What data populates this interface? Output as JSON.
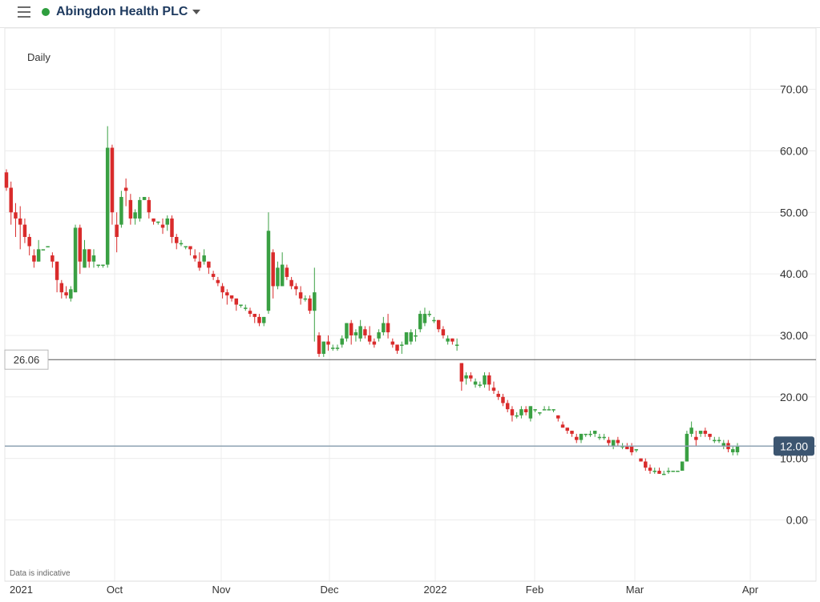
{
  "header": {
    "title": "Abingdon Health PLC",
    "status_color": "#2e9e3e"
  },
  "chart": {
    "period_label": "Daily",
    "note": "Data is indicative",
    "up_color": "#3aa043",
    "down_color": "#d92b2b"
  },
  "chart_data": {
    "type": "candlestick",
    "xlabels": [
      "2021",
      "Oct",
      "Nov",
      "Dec",
      "2022",
      "Feb",
      "Mar",
      "Apr"
    ],
    "yticks": [
      "70.00",
      "60.00",
      "50.00",
      "40.00",
      "30.00",
      "20.00",
      "10.00",
      "0.00"
    ],
    "ylim": [
      0,
      70
    ],
    "reference_line": {
      "label": "26.06",
      "value": 26.06
    },
    "last_price": {
      "label": "12.00",
      "value": 12.0
    },
    "candles": [
      [
        56.5,
        57,
        53.5,
        54
      ],
      [
        54,
        55,
        48,
        50
      ],
      [
        50,
        51.5,
        46,
        49
      ],
      [
        49,
        51,
        44,
        48
      ],
      [
        48,
        49,
        45,
        46
      ],
      [
        46,
        46.5,
        43,
        44.5
      ],
      [
        43,
        44,
        41,
        42
      ],
      [
        42,
        45.5,
        42,
        44
      ],
      [
        44,
        44,
        44,
        44
      ],
      [
        44.5,
        44.5,
        44.5,
        44.5
      ],
      [
        43,
        43.5,
        41,
        42
      ],
      [
        42,
        42,
        37,
        39
      ],
      [
        38.5,
        39,
        36,
        37
      ],
      [
        37,
        38,
        36,
        36.5
      ],
      [
        36,
        38,
        35.5,
        37.5
      ],
      [
        37,
        48,
        37,
        47.5
      ],
      [
        47.5,
        48,
        40,
        42
      ],
      [
        41,
        45.5,
        41,
        44
      ],
      [
        44,
        44,
        41,
        42
      ],
      [
        42,
        44,
        41,
        43
      ],
      [
        41.5,
        41.5,
        41,
        41.5
      ],
      [
        41.5,
        41.5,
        41,
        41.5
      ],
      [
        41.5,
        64,
        41,
        60.5
      ],
      [
        60.5,
        61,
        48,
        50
      ],
      [
        48,
        50,
        43.5,
        46
      ],
      [
        48,
        53.5,
        47.5,
        52.5
      ],
      [
        54,
        55.5,
        51,
        53.5
      ],
      [
        52,
        53,
        48,
        49
      ],
      [
        49,
        50.5,
        48,
        50
      ],
      [
        49,
        52.5,
        48.5,
        52
      ],
      [
        52,
        52.5,
        52,
        52.5
      ],
      [
        52,
        52.5,
        49,
        50
      ],
      [
        49,
        49,
        48,
        48.5
      ],
      [
        48.5,
        48.5,
        48,
        48.5
      ],
      [
        48,
        49,
        46.5,
        47.5
      ],
      [
        48,
        49.5,
        47,
        49
      ],
      [
        49,
        49.5,
        45,
        46
      ],
      [
        46,
        46.5,
        44,
        45
      ],
      [
        45,
        45.5,
        44.5,
        45
      ],
      [
        44.5,
        44.5,
        44,
        44.5
      ],
      [
        44.5,
        44.5,
        43,
        44
      ],
      [
        43,
        44,
        42,
        42.5
      ],
      [
        42,
        43.5,
        40.5,
        41
      ],
      [
        42,
        44,
        41.5,
        43
      ],
      [
        42,
        42,
        40,
        41
      ],
      [
        40,
        40.5,
        39,
        39.5
      ],
      [
        39,
        39.5,
        38,
        38.5
      ],
      [
        38,
        38.5,
        36,
        37
      ],
      [
        37,
        37.5,
        35,
        36.5
      ],
      [
        36.5,
        36.5,
        35.5,
        36
      ],
      [
        36,
        36,
        34,
        35
      ],
      [
        35,
        35,
        34.5,
        35
      ],
      [
        34.5,
        35,
        34,
        34.5
      ],
      [
        34,
        34.5,
        33,
        33.5
      ],
      [
        33.5,
        33.5,
        32,
        33
      ],
      [
        33,
        33.5,
        31.5,
        32
      ],
      [
        32,
        33,
        31.5,
        33
      ],
      [
        34,
        50,
        33.5,
        47
      ],
      [
        43.5,
        44,
        36,
        38
      ],
      [
        38,
        42,
        37.5,
        41
      ],
      [
        38,
        43.5,
        38,
        41.5
      ],
      [
        41,
        41.5,
        39,
        39.5
      ],
      [
        39,
        39.5,
        37.5,
        38
      ],
      [
        38,
        38.5,
        36.5,
        37.5
      ],
      [
        37,
        38,
        35,
        36
      ],
      [
        36,
        36.5,
        35.5,
        36
      ],
      [
        36,
        36.5,
        33.5,
        34
      ],
      [
        34,
        41,
        29,
        37
      ],
      [
        30,
        30.5,
        26.5,
        27
      ],
      [
        27,
        29,
        26.5,
        29
      ],
      [
        29,
        30,
        27.5,
        28.5
      ],
      [
        28,
        28.5,
        27.5,
        28
      ],
      [
        28,
        28.5,
        27.5,
        28
      ],
      [
        28.5,
        30,
        28,
        29.5
      ],
      [
        29.5,
        32,
        29,
        32
      ],
      [
        32,
        32.5,
        28.5,
        30
      ],
      [
        30,
        31,
        29,
        30.5
      ],
      [
        29.5,
        32.5,
        29,
        31.5
      ],
      [
        31,
        31.5,
        29.5,
        30
      ],
      [
        30,
        31.5,
        28.5,
        29
      ],
      [
        29,
        29.5,
        28,
        28.5
      ],
      [
        29.5,
        31,
        29,
        30.5
      ],
      [
        30.5,
        33,
        30,
        32
      ],
      [
        32,
        33.5,
        29.5,
        30.5
      ],
      [
        29,
        29.5,
        28,
        28.5
      ],
      [
        28.5,
        28.5,
        27,
        27.5
      ],
      [
        28.5,
        29,
        27,
        28.5
      ],
      [
        28.5,
        30.5,
        28.5,
        30.5
      ],
      [
        29,
        31,
        28.5,
        30.5
      ],
      [
        30,
        31,
        29,
        30
      ],
      [
        31,
        34,
        30.5,
        33.5
      ],
      [
        32,
        34.5,
        31.5,
        33.5
      ],
      [
        33.5,
        34,
        33,
        33.5
      ],
      [
        32.5,
        33,
        32,
        32.5
      ],
      [
        32.5,
        32.5,
        30.5,
        31
      ],
      [
        31,
        31.5,
        29.5,
        30
      ],
      [
        29,
        30,
        28.5,
        29.5
      ],
      [
        29.5,
        29.5,
        28.5,
        29
      ],
      [
        28.5,
        29.5,
        27.5,
        28.5
      ],
      [
        25.5,
        25.5,
        21,
        22.5
      ],
      [
        23,
        24,
        22,
        23.5
      ],
      [
        23.5,
        24,
        22.5,
        23
      ],
      [
        22,
        23,
        21.5,
        22.5
      ],
      [
        22,
        22.5,
        21.5,
        22
      ],
      [
        22,
        24,
        21.5,
        23.5
      ],
      [
        23.5,
        24,
        21,
        22
      ],
      [
        21.5,
        22.5,
        20.5,
        21
      ],
      [
        20.5,
        21,
        19.5,
        20
      ],
      [
        20,
        20.5,
        18.5,
        19
      ],
      [
        19,
        19.5,
        17.5,
        18
      ],
      [
        18,
        18.5,
        16,
        17
      ],
      [
        17,
        17.5,
        16.5,
        17
      ],
      [
        17,
        18.5,
        16.5,
        18
      ],
      [
        18,
        18.5,
        17,
        17.5
      ],
      [
        16.5,
        18.5,
        16,
        18.5
      ],
      [
        18,
        18,
        17.5,
        18
      ],
      [
        17.5,
        17.5,
        17,
        17.5
      ],
      [
        18,
        18.5,
        18,
        18
      ],
      [
        18,
        18.5,
        18,
        18
      ],
      [
        18,
        18,
        17.5,
        18
      ],
      [
        17,
        17,
        16,
        16.5
      ],
      [
        15.5,
        16,
        15,
        15
      ],
      [
        15,
        15,
        14,
        14.5
      ],
      [
        14.5,
        14.5,
        13.5,
        14
      ],
      [
        13.5,
        14,
        12.5,
        13
      ],
      [
        13,
        14,
        12.5,
        14
      ],
      [
        14,
        14,
        13.5,
        14
      ],
      [
        14,
        14.5,
        13.5,
        14
      ],
      [
        14,
        14.5,
        13.5,
        14.5
      ],
      [
        13.5,
        14,
        13,
        13.5
      ],
      [
        13.5,
        14,
        13,
        13.5
      ],
      [
        13,
        13.5,
        12,
        12.5
      ],
      [
        12,
        13,
        11.5,
        13
      ],
      [
        13,
        13.5,
        12,
        12.5
      ],
      [
        12,
        12.5,
        11.5,
        12
      ],
      [
        12,
        12.5,
        11.5,
        11.5
      ],
      [
        12,
        12.5,
        10.5,
        11
      ],
      [
        11.5,
        11.5,
        11,
        11.5
      ],
      [
        10,
        10,
        9.5,
        9.5
      ],
      [
        9.5,
        10,
        8,
        8.5
      ],
      [
        8.5,
        9,
        7.5,
        8
      ],
      [
        8,
        8.5,
        7.5,
        8
      ],
      [
        8,
        8.5,
        7.5,
        7.5
      ],
      [
        7.5,
        8,
        7.5,
        7.5
      ],
      [
        8,
        8.5,
        7.5,
        8
      ],
      [
        8,
        8,
        8,
        8
      ],
      [
        8,
        8,
        8,
        8
      ],
      [
        8,
        9.5,
        8,
        9.5
      ],
      [
        9.5,
        14.5,
        9.5,
        14
      ],
      [
        14,
        16,
        13.5,
        15
      ],
      [
        13.5,
        14.5,
        12,
        13
      ],
      [
        14,
        14.5,
        13.5,
        14.5
      ],
      [
        14.5,
        15,
        13.5,
        14
      ],
      [
        14,
        14,
        13,
        13.5
      ],
      [
        13,
        13.5,
        12.5,
        13
      ],
      [
        13,
        13.5,
        12.5,
        13
      ],
      [
        12,
        13,
        11.5,
        12.5
      ],
      [
        12.5,
        13,
        11,
        11.5
      ],
      [
        11,
        12,
        10.5,
        11.5
      ],
      [
        11,
        12.5,
        10.5,
        12
      ]
    ]
  }
}
